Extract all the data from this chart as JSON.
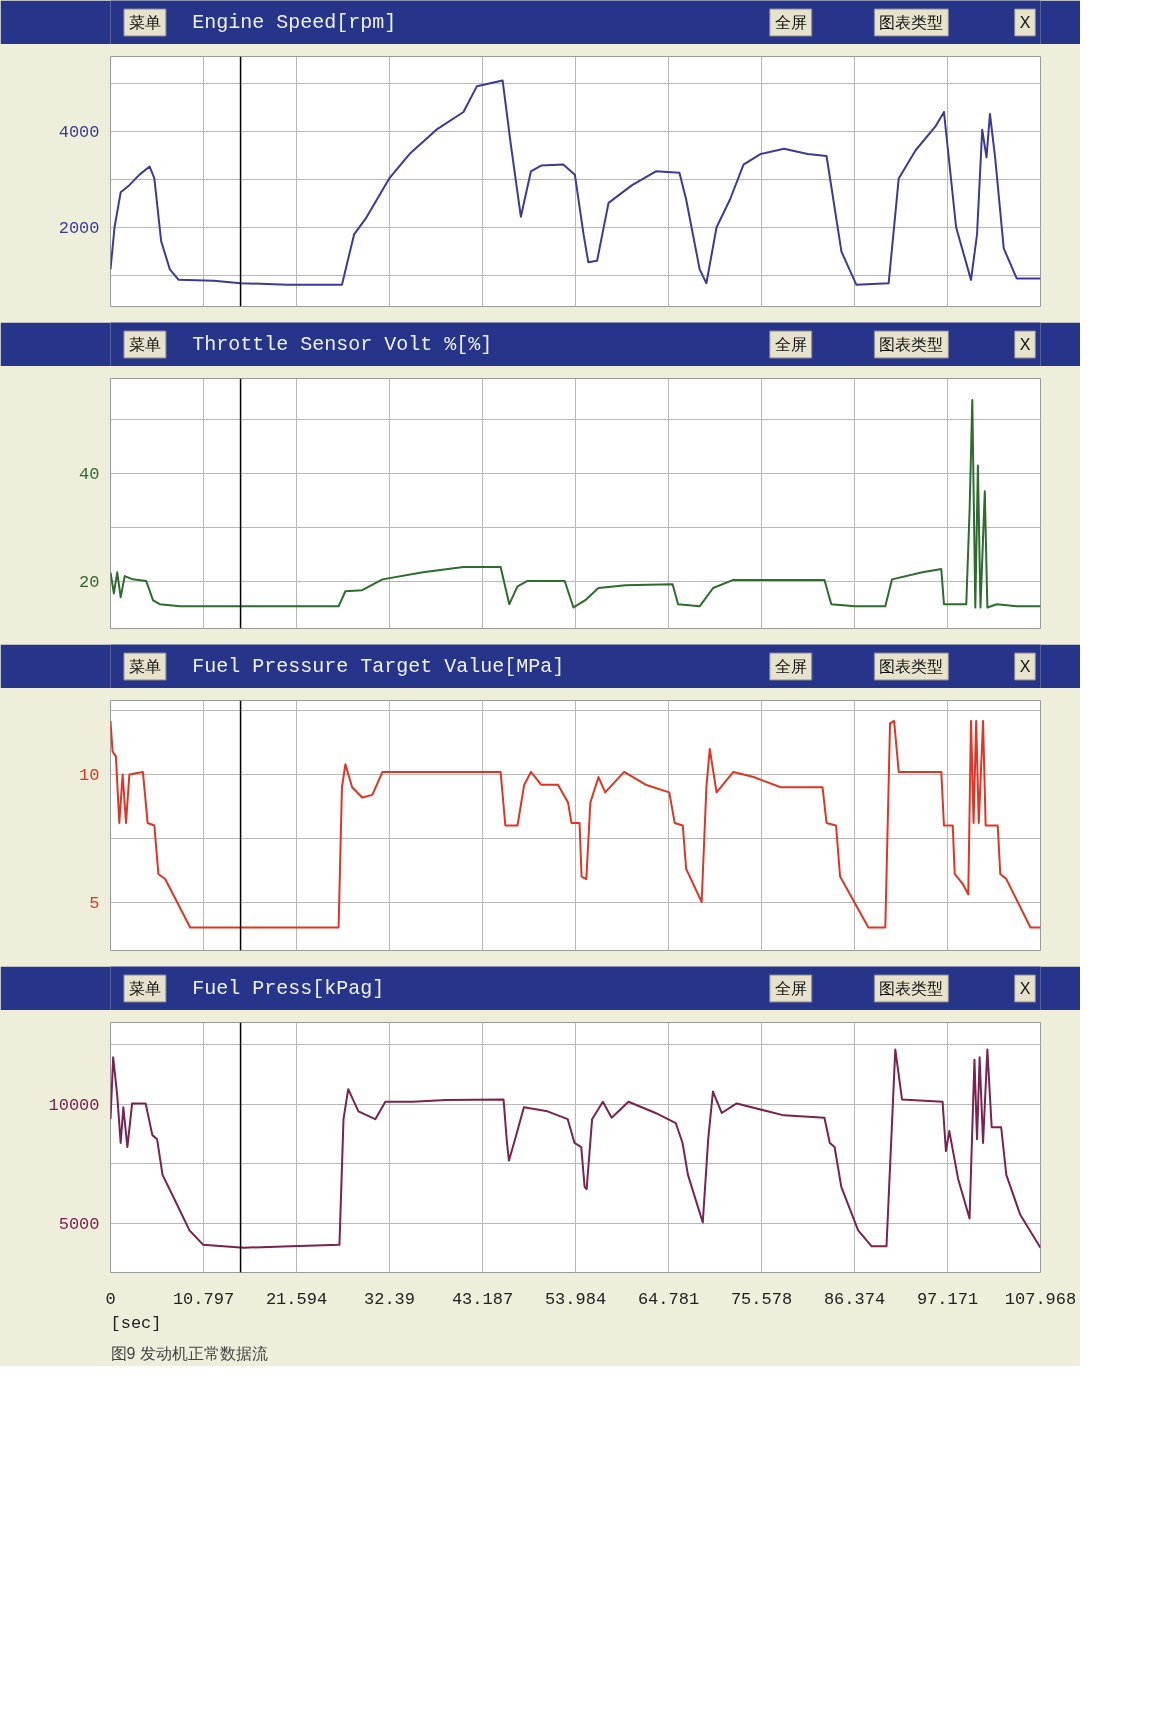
{
  "chart_data": [
    {
      "type": "line",
      "title": "Engine Speed[rpm]",
      "annotations": [
        "菜单",
        "全屏",
        "图表类型",
        "X"
      ],
      "x": [
        0,
        0.47,
        1.18,
        2.19,
        3.37,
        4.54,
        5.09,
        5.88,
        6.89,
        7.91,
        11.99,
        15.12,
        20.6,
        26.87,
        28.28,
        29.62,
        32.36,
        34.71,
        37.84,
        40.98,
        42.54,
        45.52,
        46.46,
        47.64,
        48.81,
        49.99,
        52.57,
        53.91,
        54.92,
        55.47,
        56.49,
        57.82,
        60.56,
        63.31,
        66.05,
        66.83,
        68.4,
        69.18,
        70.36,
        71.92,
        73.49,
        75.45,
        78.19,
        80.94,
        83.13,
        84.86,
        86.58,
        90.34,
        91.51,
        93.47,
        95.82,
        96.76,
        98.17,
        99.9,
        100.6,
        101.2,
        101.7,
        102.1,
        102.7,
        103.7,
        105.2,
        107.968
      ],
      "series": [
        {
          "color": "#3b3b96",
          "values": [
            1120,
            2000,
            2730,
            2880,
            3100,
            3270,
            3020,
            1710,
            1120,
            900,
            880,
            830,
            800,
            800,
            1850,
            2180,
            3020,
            3530,
            4040,
            4410,
            4950,
            5070,
            3750,
            2220,
            3170,
            3290,
            3310,
            3100,
            1850,
            1270,
            1300,
            2510,
            2880,
            3170,
            3140,
            2580,
            1120,
            830,
            2000,
            2580,
            3310,
            3530,
            3640,
            3530,
            3490,
            1490,
            800,
            830,
            3020,
            3610,
            4120,
            4410,
            2000,
            900,
            1850,
            4040,
            3460,
            4370,
            3460,
            1560,
            930,
            930
          ]
        }
      ],
      "xlim": [
        0,
        107.968
      ],
      "xticks": [
        0,
        10.797,
        21.594,
        32.39,
        43.187,
        53.984,
        64.781,
        75.578,
        86.374,
        97.171,
        107.968
      ],
      "ylim": [
        343,
        5570
      ],
      "yticks": [
        {
          "value": 1000,
          "label": null
        },
        2000,
        {
          "value": 3000,
          "label": null
        },
        4000,
        {
          "value": 5000,
          "label": null
        }
      ],
      "grid": true,
      "tick_labels": "y",
      "ref_lines": [
        {
          "axis": "x",
          "value": 15.1,
          "color": "#000000"
        }
      ]
    },
    {
      "type": "line",
      "title": "Throttle Sensor Volt %[%]",
      "annotations": [
        "菜单",
        "全屏",
        "图表类型",
        "X"
      ],
      "x": [
        0,
        0.39,
        0.78,
        1.18,
        1.65,
        2.59,
        4.15,
        4.94,
        5.72,
        8.07,
        26.48,
        27.27,
        29.22,
        31.57,
        36.27,
        40.98,
        45.29,
        46.3,
        47.25,
        48.42,
        52.73,
        53.75,
        55.08,
        56.65,
        59.78,
        65.26,
        65.89,
        68.4,
        69.96,
        72.31,
        82.89,
        83.68,
        86.42,
        89.95,
        90.73,
        94.26,
        96.45,
        96.76,
        99.35,
        99.74,
        100.05,
        100.4,
        100.7,
        101.0,
        101.5,
        101.8,
        102.9,
        105.2,
        107.968
      ],
      "series": [
        {
          "color": "#2e6b2e",
          "values": [
            21.7,
            17.8,
            21.7,
            17.1,
            21.0,
            20.4,
            20.1,
            16.5,
            15.8,
            15.4,
            15.4,
            18.2,
            18.4,
            20.4,
            21.7,
            22.7,
            22.7,
            15.8,
            19.1,
            20.1,
            20.1,
            15.2,
            16.5,
            18.8,
            19.3,
            19.5,
            15.8,
            15.4,
            18.8,
            20.3,
            20.3,
            15.8,
            15.4,
            15.4,
            20.4,
            21.7,
            22.3,
            15.8,
            15.8,
            33.4,
            53.6,
            15.2,
            41.5,
            15.2,
            36.7,
            15.2,
            15.8,
            15.4,
            15.4
          ]
        }
      ],
      "xlim": [
        0,
        107.968
      ],
      "xticks": [
        0,
        10.797,
        21.594,
        32.39,
        43.187,
        53.984,
        64.781,
        75.578,
        86.374,
        97.171,
        107.968
      ],
      "ylim": [
        11.3,
        57.6
      ],
      "yticks": [
        20,
        {
          "value": 30,
          "label": null
        },
        40,
        {
          "value": 50,
          "label": null
        }
      ],
      "grid": true,
      "tick_labels": "y",
      "ref_lines": [
        {
          "axis": "x",
          "value": 15.1,
          "color": "#000000"
        }
      ]
    },
    {
      "type": "line",
      "title": "Fuel Pressure Target Value[MPa]",
      "annotations": [
        "菜单",
        "全屏",
        "图表类型",
        "X"
      ],
      "x": [
        0,
        0.24,
        0.63,
        1.02,
        1.41,
        1.8,
        2.19,
        3.76,
        4.31,
        5.09,
        5.56,
        6.35,
        9.25,
        26.48,
        26.87,
        27.27,
        28.05,
        29.22,
        30.4,
        31.57,
        45.29,
        45.84,
        47.25,
        48.03,
        48.81,
        49.99,
        51.95,
        53.12,
        53.51,
        54.45,
        54.69,
        55.24,
        55.71,
        56.65,
        57.43,
        59.63,
        62.13,
        64.87,
        65.5,
        66.44,
        66.83,
        68.63,
        69.18,
        69.57,
        70.36,
        72.31,
        74.66,
        77.8,
        82.66,
        83.13,
        84.23,
        84.7,
        87.99,
        89.95,
        90.5,
        90.97,
        91.51,
        96.45,
        96.76,
        97.78,
        98.01,
        98.96,
        99.58,
        99.9,
        100.2,
        100.5,
        100.8,
        101.3,
        101.6,
        103.0,
        103.3,
        104.0,
        106.8,
        107.968
      ],
      "series": [
        {
          "color": "#e03524",
          "values": [
            12.1,
            10.9,
            10.7,
            8.1,
            10.0,
            8.1,
            10.0,
            10.1,
            8.1,
            8.0,
            6.1,
            5.9,
            4.0,
            4.0,
            9.5,
            10.4,
            9.5,
            9.1,
            9.2,
            10.1,
            10.1,
            8.0,
            8.0,
            9.6,
            10.1,
            9.6,
            9.6,
            8.9,
            8.1,
            8.1,
            6.0,
            5.9,
            8.9,
            9.9,
            9.3,
            10.1,
            9.6,
            9.3,
            8.1,
            8.0,
            6.3,
            5.0,
            9.5,
            11.0,
            9.3,
            10.1,
            9.9,
            9.5,
            9.5,
            8.1,
            8.0,
            6.0,
            4.0,
            4.0,
            12.0,
            12.1,
            10.1,
            10.1,
            8.0,
            8.0,
            6.1,
            5.7,
            5.3,
            12.1,
            8.1,
            12.1,
            8.1,
            12.1,
            8.0,
            8.0,
            6.1,
            5.9,
            4.0,
            4.0
          ]
        }
      ],
      "xlim": [
        0,
        107.968
      ],
      "xticks": [
        0,
        10.797,
        21.594,
        32.39,
        43.187,
        53.984,
        64.781,
        75.578,
        86.374,
        97.171,
        107.968
      ],
      "ylim": [
        3.1,
        12.9
      ],
      "yticks": [
        5,
        {
          "value": 7.5,
          "label": null
        },
        10,
        {
          "value": 12.5,
          "label": null
        }
      ],
      "grid": true,
      "tick_labels": "y",
      "ref_lines": [
        {
          "axis": "x",
          "value": 15.1,
          "color": "#000000"
        }
      ]
    },
    {
      "type": "line",
      "title": "Fuel Press[kPag]",
      "xlabel": "[sec]",
      "annotations": [
        "菜单",
        "全屏",
        "图表类型",
        "X",
        "图9  发动机正常数据流"
      ],
      "x": [
        0,
        0.31,
        0.78,
        1.18,
        1.49,
        1.96,
        2.51,
        4.08,
        4.86,
        5.41,
        6.04,
        7.61,
        9.17,
        10.74,
        15.45,
        20.94,
        26.58,
        27.05,
        27.6,
        28.78,
        30.74,
        31.91,
        35.05,
        38.97,
        45.63,
        46.03,
        46.26,
        46.97,
        47.99,
        50.73,
        53.08,
        53.87,
        54.65,
        55.04,
        55.28,
        55.91,
        57.16,
        58.18,
        60.14,
        63.28,
        65.63,
        66.41,
        67.04,
        68.76,
        69.39,
        69.94,
        70.96,
        72.69,
        78.17,
        82.88,
        83.51,
        84.06,
        84.84,
        86.8,
        88.37,
        90.09,
        91.11,
        91.89,
        96.6,
        96.99,
        97.38,
        98.4,
        99.73,
        100.3,
        100.6,
        100.9,
        101.3,
        101.8,
        102.3,
        103.4,
        104.0,
        105.6,
        107.968
      ],
      "series": [
        {
          "color": "#7a2250",
          "values": [
            9370,
            11970,
            10370,
            8370,
            9870,
            8200,
            10030,
            10030,
            8700,
            8530,
            7030,
            5870,
            4700,
            4100,
            3970,
            4030,
            4100,
            9370,
            10630,
            9700,
            9370,
            10100,
            10100,
            10170,
            10200,
            8370,
            7630,
            8530,
            9870,
            9700,
            9370,
            8370,
            8200,
            6530,
            6430,
            9370,
            10100,
            9430,
            10100,
            9630,
            9200,
            8370,
            7030,
            5030,
            8530,
            10530,
            9630,
            10030,
            9530,
            9430,
            8370,
            8200,
            6530,
            4700,
            4030,
            4030,
            12300,
            10200,
            10100,
            8030,
            8870,
            6870,
            5200,
            11870,
            8530,
            11970,
            8370,
            12300,
            9030,
            9030,
            7030,
            5370,
            3970
          ]
        }
      ],
      "xlim": [
        0,
        107.968
      ],
      "xticks": [
        0,
        10.797,
        21.594,
        32.39,
        43.187,
        53.984,
        64.781,
        75.578,
        86.374,
        97.171,
        107.968
      ],
      "ylim": [
        2930,
        13430
      ],
      "yticks": [
        5000,
        {
          "value": 7500,
          "label": null
        },
        10000,
        {
          "value": 12500,
          "label": null
        }
      ],
      "grid": true,
      "ref_lines": [
        {
          "axis": "x",
          "value": 15.1,
          "color": "#000000"
        }
      ]
    }
  ]
}
